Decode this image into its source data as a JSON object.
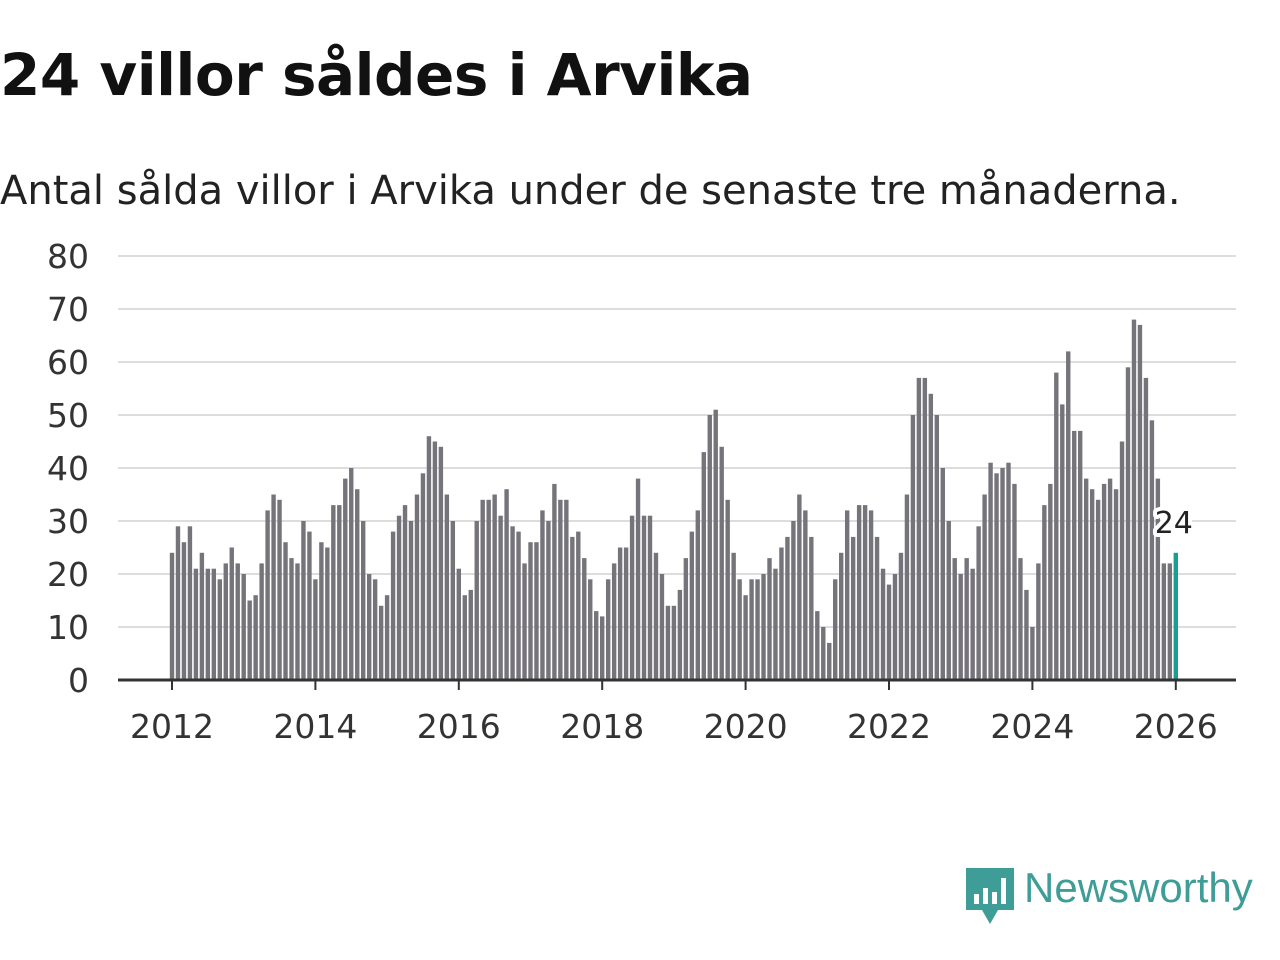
{
  "title": "24 villor såldes i Arvika",
  "subtitle": "Antal sålda villor i Arvika under de senaste tre månaderna.",
  "brand": {
    "name": "Newsworthy",
    "icon": "newsworthy-logo-icon",
    "color": "#3e9d96"
  },
  "colors": {
    "bar": "#76747b",
    "highlight": "#1a9e94",
    "grid": "#dddddd",
    "axis": "#333333",
    "tick_text": "#333333"
  },
  "chart_data": {
    "type": "bar",
    "title": "24 villor såldes i Arvika",
    "xlabel": "",
    "ylabel": "",
    "ylim": [
      0,
      80
    ],
    "yticks": [
      0,
      10,
      20,
      30,
      40,
      50,
      60,
      70,
      80
    ],
    "xticks": [
      "2012",
      "2014",
      "2016",
      "2018",
      "2020",
      "2022",
      "2024",
      "2026"
    ],
    "start": "2012-01",
    "frequency": "monthly (rolling three-month total)",
    "highlight_label": "24",
    "series": [
      {
        "name": "Sålda villor",
        "values": [
          24,
          29,
          26,
          29,
          21,
          24,
          21,
          21,
          19,
          22,
          25,
          22,
          20,
          15,
          16,
          22,
          32,
          35,
          34,
          26,
          23,
          22,
          30,
          28,
          19,
          26,
          25,
          33,
          33,
          38,
          40,
          36,
          30,
          20,
          19,
          14,
          16,
          28,
          31,
          33,
          30,
          35,
          39,
          46,
          45,
          44,
          35,
          30,
          21,
          16,
          17,
          30,
          34,
          34,
          35,
          31,
          36,
          29,
          28,
          22,
          26,
          26,
          32,
          30,
          37,
          34,
          34,
          27,
          28,
          23,
          19,
          13,
          12,
          19,
          22,
          25,
          25,
          31,
          38,
          31,
          31,
          24,
          20,
          14,
          14,
          17,
          23,
          28,
          32,
          43,
          50,
          51,
          44,
          34,
          24,
          19,
          16,
          19,
          19,
          20,
          23,
          21,
          25,
          27,
          30,
          35,
          32,
          27,
          13,
          10,
          7,
          19,
          24,
          32,
          27,
          33,
          33,
          32,
          27,
          21,
          18,
          20,
          24,
          35,
          50,
          57,
          57,
          54,
          50,
          40,
          30,
          23,
          20,
          23,
          21,
          29,
          35,
          41,
          39,
          40,
          41,
          37,
          23,
          17,
          10,
          22,
          33,
          37,
          58,
          52,
          62,
          47,
          47,
          38,
          36,
          34,
          37,
          38,
          36,
          45,
          59,
          68,
          67,
          57,
          49,
          38,
          22,
          22,
          24
        ]
      }
    ]
  }
}
